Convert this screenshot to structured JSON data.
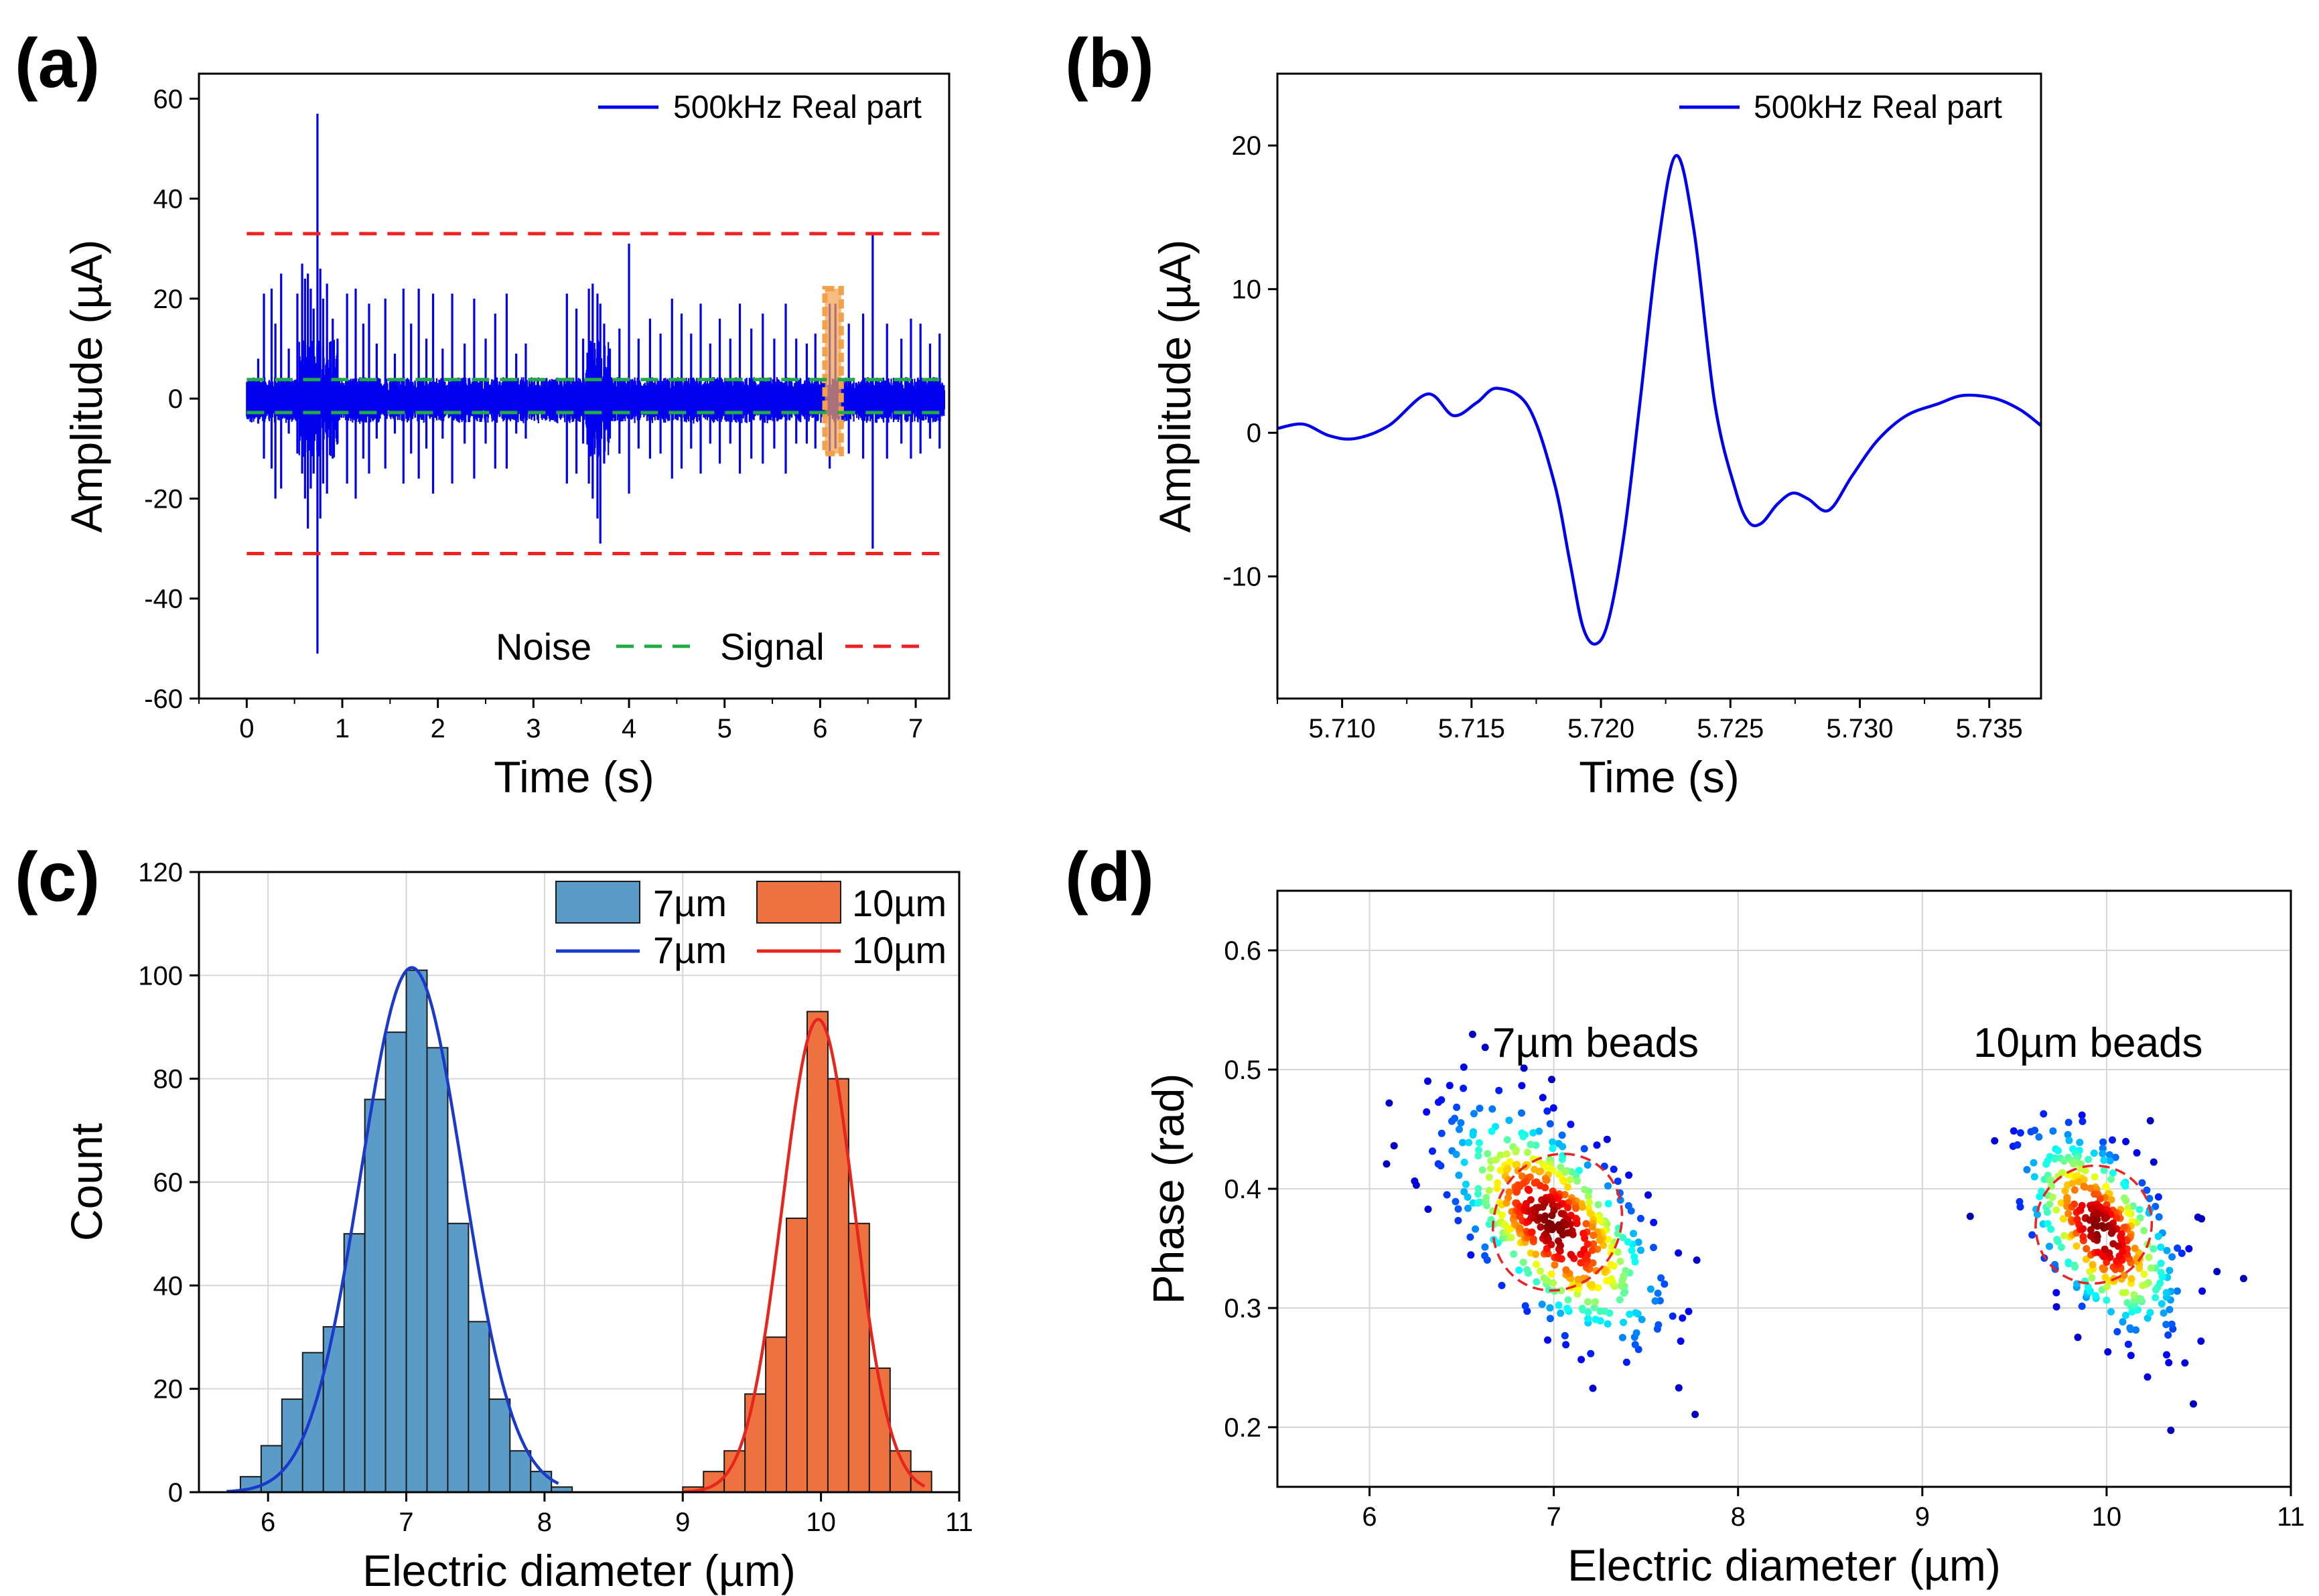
{
  "panels": [
    {
      "id": "a",
      "letter": "(a)"
    },
    {
      "id": "b",
      "letter": "(b)"
    },
    {
      "id": "c",
      "letter": "(c)"
    },
    {
      "id": "d",
      "letter": "(d)"
    }
  ],
  "chart_data": [
    {
      "panel": "(a)",
      "type": "line",
      "xlabel": "Time (s)",
      "ylabel": "Amplitude (µA)",
      "xlim": [
        -0.5,
        7.35
      ],
      "ylim": [
        -60,
        65
      ],
      "xticks": [
        0,
        1,
        2,
        3,
        4,
        5,
        6,
        7
      ],
      "yticks": [
        -60,
        -40,
        -20,
        0,
        20,
        40,
        60
      ],
      "legend": {
        "position": "top-right",
        "entry": "500kHz Real part"
      },
      "series_color": "#0000ee",
      "thresholds": [
        {
          "name": "Signal",
          "values": [
            33,
            -31
          ],
          "color": "#ee2222",
          "style": "dashed"
        },
        {
          "name": "Noise",
          "values": [
            3.8,
            -2.8
          ],
          "color": "#22aa44",
          "style": "dashed"
        }
      ],
      "threshold_legend": [
        {
          "label": "Noise",
          "color": "#22aa44"
        },
        {
          "label": "Signal",
          "color": "#ee2222"
        }
      ],
      "highlight": {
        "x": [
          6.05,
          6.22
        ],
        "y": [
          -11,
          22
        ],
        "color": "#f2a04a"
      },
      "spikes": [
        {
          "t": 0.12,
          "hi": 8,
          "lo": -5
        },
        {
          "t": 0.18,
          "hi": 21,
          "lo": -12
        },
        {
          "t": 0.26,
          "hi": 22,
          "lo": -14
        },
        {
          "t": 0.3,
          "hi": 15,
          "lo": -20
        },
        {
          "t": 0.36,
          "hi": 25,
          "lo": -18
        },
        {
          "t": 0.44,
          "hi": 10,
          "lo": -7
        },
        {
          "t": 0.53,
          "hi": 21,
          "lo": -11
        },
        {
          "t": 0.58,
          "hi": 27,
          "lo": -15
        },
        {
          "t": 0.61,
          "hi": 24,
          "lo": -20
        },
        {
          "t": 0.64,
          "hi": 25,
          "lo": -26
        },
        {
          "t": 0.67,
          "hi": 22,
          "lo": -18
        },
        {
          "t": 0.7,
          "hi": 18,
          "lo": -15
        },
        {
          "t": 0.74,
          "hi": 57,
          "lo": -51
        },
        {
          "t": 0.77,
          "hi": 26,
          "lo": -24
        },
        {
          "t": 0.8,
          "hi": 20,
          "lo": -17
        },
        {
          "t": 0.84,
          "hi": 23,
          "lo": -19
        },
        {
          "t": 0.9,
          "hi": 16,
          "lo": -12
        },
        {
          "t": 0.95,
          "hi": 12,
          "lo": -9
        },
        {
          "t": 1.05,
          "hi": 21,
          "lo": -17
        },
        {
          "t": 1.14,
          "hi": 22,
          "lo": -20
        },
        {
          "t": 1.22,
          "hi": 15,
          "lo": -12
        },
        {
          "t": 1.28,
          "hi": 19,
          "lo": -15
        },
        {
          "t": 1.36,
          "hi": 11,
          "lo": -8
        },
        {
          "t": 1.45,
          "hi": 20,
          "lo": -14
        },
        {
          "t": 1.55,
          "hi": 9,
          "lo": -7
        },
        {
          "t": 1.64,
          "hi": 22,
          "lo": -17
        },
        {
          "t": 1.72,
          "hi": 15,
          "lo": -11
        },
        {
          "t": 1.8,
          "hi": 22,
          "lo": -16
        },
        {
          "t": 1.88,
          "hi": 12,
          "lo": -10
        },
        {
          "t": 1.95,
          "hi": 21,
          "lo": -19
        },
        {
          "t": 2.05,
          "hi": 10,
          "lo": -8
        },
        {
          "t": 2.15,
          "hi": 21,
          "lo": -17
        },
        {
          "t": 2.28,
          "hi": 11,
          "lo": -9
        },
        {
          "t": 2.38,
          "hi": 20,
          "lo": -16
        },
        {
          "t": 2.5,
          "hi": 12,
          "lo": -9
        },
        {
          "t": 2.6,
          "hi": 17,
          "lo": -14
        },
        {
          "t": 2.72,
          "hi": 21,
          "lo": -14
        },
        {
          "t": 2.82,
          "hi": 9,
          "lo": -7
        },
        {
          "t": 2.92,
          "hi": 11,
          "lo": -8
        },
        {
          "t": 3.35,
          "hi": 21,
          "lo": -17
        },
        {
          "t": 3.45,
          "hi": 18,
          "lo": -15
        },
        {
          "t": 3.52,
          "hi": 12,
          "lo": -9
        },
        {
          "t": 3.58,
          "hi": 22,
          "lo": -17
        },
        {
          "t": 3.62,
          "hi": 23,
          "lo": -20
        },
        {
          "t": 3.67,
          "hi": 21,
          "lo": -24
        },
        {
          "t": 3.7,
          "hi": 19,
          "lo": -29
        },
        {
          "t": 3.74,
          "hi": 15,
          "lo": -13
        },
        {
          "t": 3.8,
          "hi": 10,
          "lo": -8
        },
        {
          "t": 3.9,
          "hi": 14,
          "lo": -11
        },
        {
          "t": 4.0,
          "hi": 31,
          "lo": -19
        },
        {
          "t": 4.1,
          "hi": 12,
          "lo": -10
        },
        {
          "t": 4.22,
          "hi": 16,
          "lo": -12
        },
        {
          "t": 4.33,
          "hi": 13,
          "lo": -11
        },
        {
          "t": 4.45,
          "hi": 20,
          "lo": -16
        },
        {
          "t": 4.55,
          "hi": 17,
          "lo": -14
        },
        {
          "t": 4.65,
          "hi": 13,
          "lo": -10
        },
        {
          "t": 4.75,
          "hi": 19,
          "lo": -15
        },
        {
          "t": 4.85,
          "hi": 11,
          "lo": -9
        },
        {
          "t": 4.95,
          "hi": 16,
          "lo": -13
        },
        {
          "t": 5.06,
          "hi": 12,
          "lo": -9
        },
        {
          "t": 5.16,
          "hi": 19,
          "lo": -15
        },
        {
          "t": 5.28,
          "hi": 14,
          "lo": -12
        },
        {
          "t": 5.4,
          "hi": 17,
          "lo": -13
        },
        {
          "t": 5.52,
          "hi": 12,
          "lo": -10
        },
        {
          "t": 5.64,
          "hi": 19,
          "lo": -15
        },
        {
          "t": 5.75,
          "hi": 12,
          "lo": -9
        },
        {
          "t": 5.86,
          "hi": 11,
          "lo": -9
        },
        {
          "t": 5.95,
          "hi": 13,
          "lo": -10
        },
        {
          "t": 6.1,
          "hi": 19,
          "lo": -14
        },
        {
          "t": 6.16,
          "hi": 19,
          "lo": -10
        },
        {
          "t": 6.3,
          "hi": 15,
          "lo": -11
        },
        {
          "t": 6.45,
          "hi": 17,
          "lo": -12
        },
        {
          "t": 6.55,
          "hi": 33,
          "lo": -30
        },
        {
          "t": 6.7,
          "hi": 15,
          "lo": -12
        },
        {
          "t": 6.85,
          "hi": 12,
          "lo": -9
        },
        {
          "t": 6.95,
          "hi": 16,
          "lo": -12
        },
        {
          "t": 7.05,
          "hi": 15,
          "lo": -11
        },
        {
          "t": 7.15,
          "hi": 11,
          "lo": -8
        },
        {
          "t": 7.25,
          "hi": 13,
          "lo": -10
        }
      ]
    },
    {
      "panel": "(b)",
      "type": "line",
      "xlabel": "Time (s)",
      "ylabel": "Amplitude (µA)",
      "xlim": [
        5.7075,
        5.737
      ],
      "ylim": [
        -18.5,
        25
      ],
      "xticks": [
        5.71,
        5.715,
        5.72,
        5.725,
        5.73,
        5.735
      ],
      "xtick_labels": [
        "5.710",
        "5.715",
        "5.720",
        "5.725",
        "5.730",
        "5.735"
      ],
      "yticks": [
        -10,
        0,
        10,
        20
      ],
      "legend": {
        "position": "top-right",
        "entry": "500kHz Real part"
      },
      "series_color": "#0000ee",
      "x": [
        5.7075,
        5.7085,
        5.7095,
        5.7105,
        5.7118,
        5.7133,
        5.7143,
        5.7152,
        5.716,
        5.7172,
        5.7182,
        5.7188,
        5.7193,
        5.7198,
        5.7203,
        5.7209,
        5.7215,
        5.7222,
        5.7229,
        5.7236,
        5.7244,
        5.7252,
        5.7257,
        5.7262,
        5.7268,
        5.7274,
        5.728,
        5.7288,
        5.7297,
        5.7307,
        5.7318,
        5.733,
        5.734,
        5.7352,
        5.7362,
        5.737
      ],
      "y": [
        0.3,
        0.6,
        -0.2,
        -0.4,
        0.5,
        2.7,
        1.2,
        2.1,
        3.1,
        1.8,
        -3.5,
        -9,
        -13.5,
        -14.7,
        -13,
        -7,
        2,
        13,
        19.3,
        14,
        2,
        -4,
        -6.2,
        -6.3,
        -5,
        -4.2,
        -4.6,
        -5.4,
        -3,
        -0.5,
        1.2,
        2,
        2.6,
        2.4,
        1.6,
        0.5
      ]
    },
    {
      "panel": "(c)",
      "type": "bar",
      "xlabel": "Electric diameter (µm)",
      "ylabel": "Count",
      "xlim": [
        5.5,
        11
      ],
      "ylim": [
        0,
        120
      ],
      "xticks": [
        6,
        7,
        8,
        9,
        10,
        11
      ],
      "yticks": [
        0,
        20,
        40,
        60,
        80,
        100,
        120
      ],
      "grid": true,
      "legend": {
        "position": "top-right",
        "columns": 2
      },
      "series": [
        {
          "name": "7µm",
          "color": "#5b9bc8",
          "bin_width": 0.15,
          "bin_left": [
            5.8,
            5.95,
            6.1,
            6.25,
            6.4,
            6.55,
            6.7,
            6.85,
            7.0,
            7.15,
            7.3,
            7.45,
            7.6,
            7.75,
            7.9,
            8.05
          ],
          "counts": [
            3,
            9,
            18,
            27,
            32,
            50,
            76,
            89,
            101,
            86,
            52,
            33,
            18,
            8,
            4,
            1
          ],
          "fit": {
            "name": "7µm",
            "color": "#1a3acc",
            "mean": 7.04,
            "sigma": 0.37,
            "peak": 101.5,
            "range": [
              5.7,
              8.1
            ]
          }
        },
        {
          "name": "10µm",
          "color": "#ed7240",
          "bin_width": 0.15,
          "bin_left": [
            9.0,
            9.15,
            9.3,
            9.45,
            9.6,
            9.75,
            9.9,
            10.05,
            10.2,
            10.35,
            10.5,
            10.65
          ],
          "counts": [
            1,
            4,
            8,
            19,
            30,
            53,
            93,
            80,
            52,
            24,
            8,
            4
          ],
          "fit": {
            "name": "10µm",
            "color": "#e8251c",
            "mean": 9.98,
            "sigma": 0.26,
            "peak": 91.5,
            "range": [
              9.0,
              10.75
            ]
          }
        }
      ]
    },
    {
      "panel": "(d)",
      "type": "scatter",
      "xlabel": "Electric diameter (µm)",
      "ylabel": "Phase (rad)",
      "xlim": [
        5.5,
        11
      ],
      "ylim": [
        0.15,
        0.65
      ],
      "xticks": [
        6,
        7,
        8,
        9,
        10,
        11
      ],
      "yticks": [
        0.2,
        0.3,
        0.4,
        0.5,
        0.6
      ],
      "grid": true,
      "annotations": [
        "7µm beads",
        "10µm beads"
      ],
      "colormap": "jet",
      "clusters": [
        {
          "label": "7µm beads",
          "center": [
            7.0,
            0.37
          ],
          "sd": [
            0.3,
            0.052
          ],
          "corr": -0.6,
          "n": 520,
          "ellipse": {
            "center": [
              7.02,
              0.372
            ],
            "rx_data": 0.33,
            "ry_data": 0.085,
            "angle_deg": -18,
            "color": "#ee2222"
          }
        },
        {
          "label": "10µm beads",
          "center": [
            9.97,
            0.365
          ],
          "sd": [
            0.22,
            0.045
          ],
          "corr": -0.55,
          "n": 380,
          "ellipse": {
            "center": [
              9.93,
              0.37
            ],
            "rx_data": 0.28,
            "ry_data": 0.078,
            "angle_deg": -18,
            "color": "#ee2222"
          }
        }
      ]
    }
  ]
}
